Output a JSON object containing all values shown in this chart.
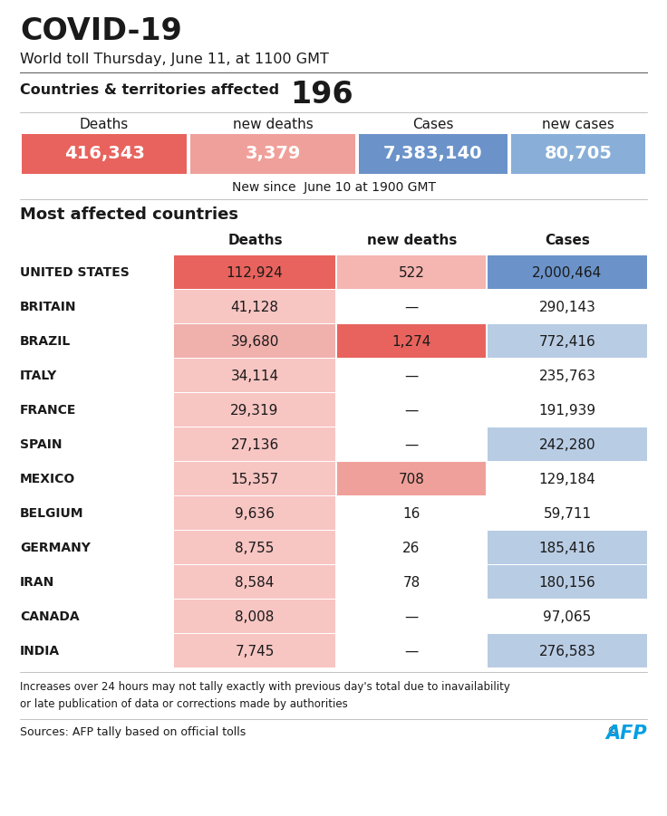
{
  "title": "COVID-19",
  "subtitle": "World toll Thursday, June 11, at 1100 GMT",
  "countries_label": "Countries & territories affected",
  "countries_count": "196",
  "global_headers": [
    "Deaths",
    "new deaths",
    "Cases",
    "new cases"
  ],
  "global_values": [
    "416,343",
    "3,379",
    "7,383,140",
    "80,705"
  ],
  "global_bg_colors": [
    "#e8635d",
    "#f0a09a",
    "#6b93c9",
    "#89afd8"
  ],
  "new_since_label": "New since  June 10 at 1900 GMT",
  "most_affected_label": "Most affected countries",
  "table_headers": [
    "Deaths",
    "new deaths",
    "Cases"
  ],
  "countries": [
    "UNITED STATES",
    "BRITAIN",
    "BRAZIL",
    "ITALY",
    "FRANCE",
    "SPAIN",
    "MEXICO",
    "BELGIUM",
    "GERMANY",
    "IRAN",
    "CANADA",
    "INDIA"
  ],
  "deaths": [
    "112,924",
    "41,128",
    "39,680",
    "34,114",
    "29,319",
    "27,136",
    "15,357",
    "9,636",
    "8,755",
    "8,584",
    "8,008",
    "7,745"
  ],
  "new_deaths": [
    "522",
    "—",
    "1,274",
    "—",
    "—",
    "—",
    "708",
    "16",
    "26",
    "78",
    "—",
    "—"
  ],
  "cases": [
    "2,000,464",
    "290,143",
    "772,416",
    "235,763",
    "191,939",
    "242,280",
    "129,184",
    "59,711",
    "185,416",
    "180,156",
    "97,065",
    "276,583"
  ],
  "deaths_bg": [
    "#e8635d",
    "#f7c5c2",
    "#f0b0ac",
    "#f7c5c2",
    "#f7c5c2",
    "#f7c5c2",
    "#f7c5c2",
    "#f7c5c2",
    "#f7c5c2",
    "#f7c5c2",
    "#f7c5c2",
    "#f7c5c2"
  ],
  "new_deaths_bg": [
    "#f5b5b0",
    "#ffffff",
    "#e8635d",
    "#ffffff",
    "#ffffff",
    "#ffffff",
    "#f0a09a",
    "#ffffff",
    "#ffffff",
    "#ffffff",
    "#ffffff",
    "#ffffff"
  ],
  "cases_bg": [
    "#6b93c9",
    "#ffffff",
    "#b8cce4",
    "#ffffff",
    "#ffffff",
    "#b8cce4",
    "#ffffff",
    "#ffffff",
    "#b8cce4",
    "#b8cce4",
    "#ffffff",
    "#b8cce4"
  ],
  "disclaimer": "Increases over 24 hours may not tally exactly with previous day's total due to inavailability\nor late publication of data or corrections made by authorities",
  "source": "Sources: AFP tally based on official tolls",
  "bg_color": "#ffffff",
  "text_color": "#1a1a1a",
  "afp_color": "#009fe3"
}
